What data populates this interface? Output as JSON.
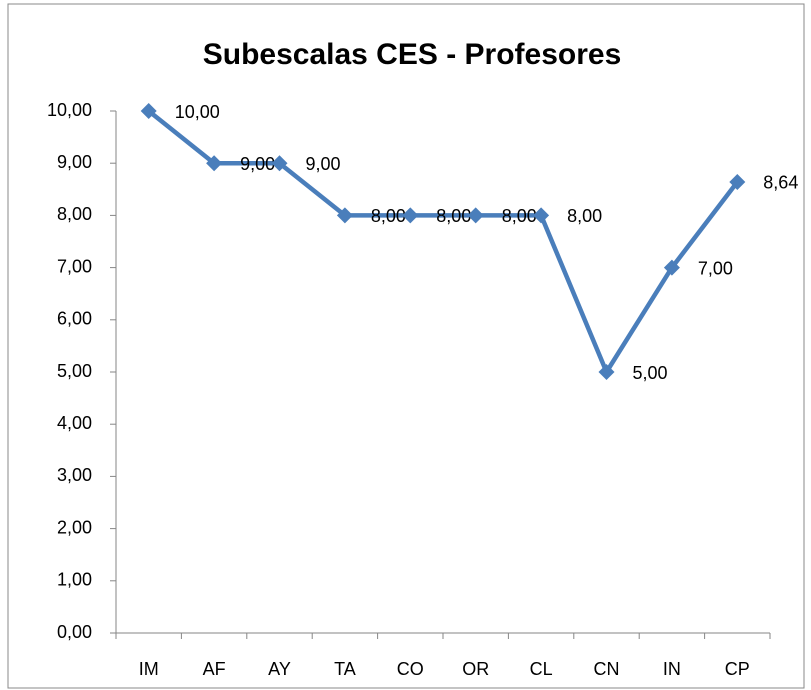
{
  "chart_data": {
    "type": "line",
    "title": "Subescalas CES - Profesores",
    "categories": [
      "IM",
      "AF",
      "AY",
      "TA",
      "CO",
      "OR",
      "CL",
      "CN",
      "IN",
      "CP"
    ],
    "series": [
      {
        "name": "Profesores",
        "color": "#4a7ebb",
        "values": [
          10,
          9,
          9,
          8,
          8,
          8,
          8,
          5,
          7,
          8.64
        ],
        "value_labels": [
          "10,00",
          "9,00",
          "9,00",
          "8,00",
          "8,00",
          "8,00",
          "8,00",
          "5,00",
          "7,00",
          "8,64"
        ]
      }
    ],
    "ylim": [
      0,
      10
    ],
    "yticks": [
      {
        "value": 0,
        "label": "0,00"
      },
      {
        "value": 1,
        "label": "1,00"
      },
      {
        "value": 2,
        "label": "2,00"
      },
      {
        "value": 3,
        "label": "3,00"
      },
      {
        "value": 4,
        "label": "4,00"
      },
      {
        "value": 5,
        "label": "5,00"
      },
      {
        "value": 6,
        "label": "6,00"
      },
      {
        "value": 7,
        "label": "7,00"
      },
      {
        "value": 8,
        "label": "8,00"
      },
      {
        "value": 9,
        "label": "9,00"
      },
      {
        "value": 10,
        "label": "10,00"
      }
    ],
    "grid": false
  }
}
